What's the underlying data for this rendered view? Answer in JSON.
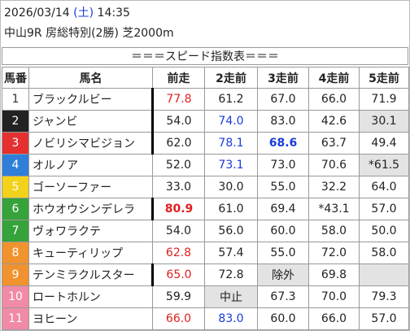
{
  "header": {
    "date": "2026/03/14",
    "weekday": "(土)",
    "time": "14:35",
    "race": "中山9R 房総特別(2勝) 芝2000m",
    "title": "＝＝＝スピード指数表＝＝＝"
  },
  "table": {
    "columns": [
      "馬番",
      "馬名",
      "前走",
      "2走前",
      "3走前",
      "4走前",
      "5走前"
    ],
    "rows": [
      [
        "1",
        "ブラックルビー",
        "77.8",
        "61.2",
        "67.0",
        "66.0",
        "71.9"
      ],
      [
        "2",
        "ジャンビ",
        "54.0",
        "74.0",
        "83.0",
        "42.6",
        "30.1"
      ],
      [
        "3",
        "ノビリシマビジョン",
        "62.0",
        "78.1",
        "68.6",
        "63.7",
        "49.4"
      ],
      [
        "4",
        "オルノア",
        "52.0",
        "73.1",
        "73.0",
        "70.6",
        "*61.5"
      ],
      [
        "5",
        "ゴーソーファー",
        "33.0",
        "30.0",
        "55.0",
        "32.2",
        "64.0"
      ],
      [
        "6",
        "ホウオウシンデレラ",
        "80.9",
        "61.0",
        "69.4",
        "*43.1",
        "57.0"
      ],
      [
        "7",
        "ヴォワラクテ",
        "54.0",
        "56.0",
        "60.0",
        "58.0",
        "50.0"
      ],
      [
        "8",
        "キューティリップ",
        "62.8",
        "57.4",
        "55.0",
        "72.0",
        "58.0"
      ],
      [
        "9",
        "テンミラクルスター",
        "65.0",
        "72.8",
        "除外",
        "69.8",
        null
      ],
      [
        "10",
        "ロートホルン",
        "59.9",
        "中止",
        "67.3",
        "70.0",
        "79.3"
      ],
      [
        "11",
        "ヨヒーン",
        "66.0",
        "83.0",
        "60.0",
        "66.0",
        "57.0"
      ]
    ]
  }
}
